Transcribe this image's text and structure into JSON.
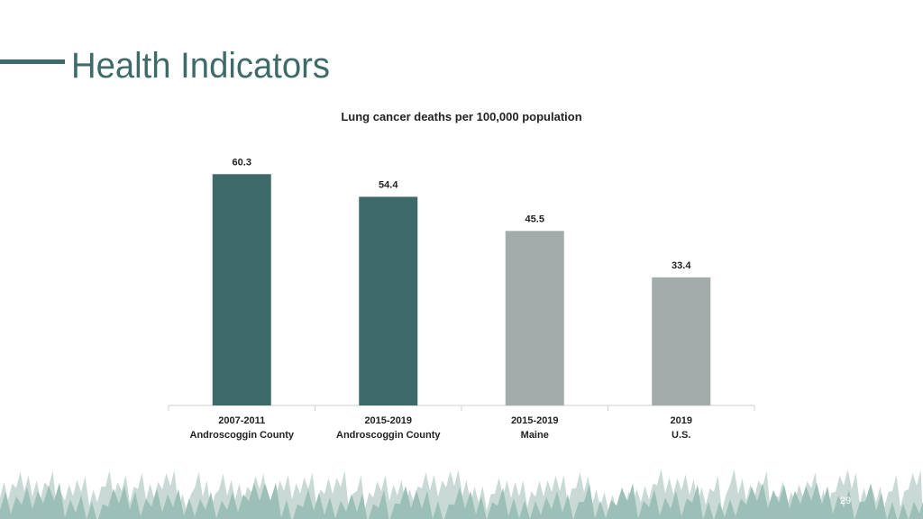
{
  "header": {
    "title": "Health Indicators",
    "page_number": "29"
  },
  "chart_data": {
    "type": "bar",
    "title": "Lung cancer deaths per 100,000 population",
    "categories": [
      [
        "2007-2011",
        "Androscoggin County"
      ],
      [
        "2015-2019",
        "Androscoggin County"
      ],
      [
        "2015-2019",
        "Maine"
      ],
      [
        "2019",
        "U.S."
      ]
    ],
    "values": [
      60.3,
      54.4,
      45.5,
      33.4
    ],
    "colors": [
      "#3e6b69",
      "#3e6b69",
      "#a3acab",
      "#a3acab"
    ],
    "ylim": [
      0,
      70
    ],
    "grid": false
  }
}
